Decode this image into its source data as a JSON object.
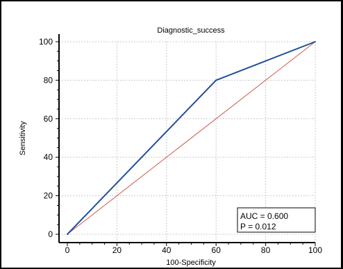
{
  "chart_data": {
    "type": "line",
    "title": "Diagnostic_success",
    "xlabel": "100-Specificity",
    "ylabel": "Sensitivity",
    "xlim": [
      0,
      100
    ],
    "ylim": [
      0,
      100
    ],
    "xticks": [
      0,
      20,
      40,
      60,
      80,
      100
    ],
    "yticks": [
      0,
      20,
      40,
      60,
      80,
      100
    ],
    "grid": true,
    "series": [
      {
        "values": [
          [
            0,
            0
          ],
          [
            60,
            80
          ],
          [
            100,
            100
          ]
        ],
        "color": "#1f4f9a"
      },
      {
        "values": [
          [
            0,
            0
          ],
          [
            100,
            100
          ]
        ],
        "color": "#cc5a4e"
      }
    ],
    "annotation": {
      "lines": [
        "AUC = 0.600",
        "P = 0.012"
      ],
      "placement": "bottom-right"
    }
  },
  "colors": {
    "roc": "#1f4f9a",
    "reference": "#cc5a4e",
    "grid": "#c8c8c8"
  }
}
